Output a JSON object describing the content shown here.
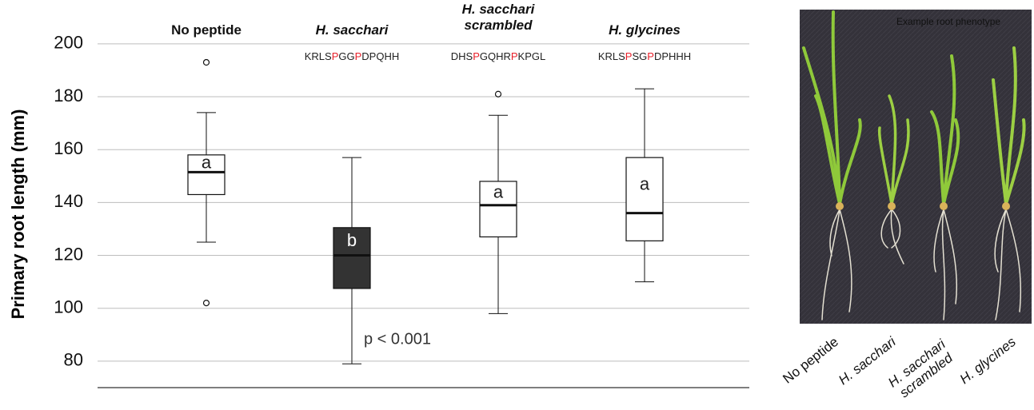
{
  "chart_data": {
    "type": "box",
    "ylabel": "Primary root length (mm)",
    "categories": [
      "No peptide",
      "H. sacchari",
      "H. sacchari scrambled",
      "H. glycines"
    ],
    "whisker_low": [
      125,
      79,
      98,
      110
    ],
    "q1": [
      143,
      107.5,
      127,
      125.5
    ],
    "median": [
      151.5,
      120,
      139,
      136
    ],
    "q3": [
      158,
      130.5,
      148,
      157
    ],
    "whisker_high": [
      174,
      157,
      173,
      183
    ],
    "outliers": [
      [
        193,
        102
      ],
      [],
      [
        181
      ],
      []
    ],
    "box_colors": [
      "#ffffff",
      "#333333",
      "#ffffff",
      "#ffffff"
    ],
    "letters": [
      "a",
      "b",
      "a",
      "a"
    ],
    "sequences": [
      [],
      [
        "KRLS",
        "P",
        "GG",
        "P",
        "DPQHH"
      ],
      [
        "DHS",
        "P",
        "GQHR",
        "P",
        "KPGL"
      ],
      [
        "KRLS",
        "P",
        "SG",
        "P",
        "DPHHH"
      ]
    ],
    "highlight_color": "#e8202a",
    "annotation": "p < 0.001",
    "ylim": [
      70,
      206
    ],
    "yticks": [
      80,
      100,
      120,
      140,
      160,
      180,
      200
    ],
    "grid": true
  },
  "photo": {
    "caption": "Example root phenotype",
    "labels": [
      "No peptide",
      "H. sacchari",
      "H. sacchari scrambled",
      "H. glycines"
    ]
  }
}
